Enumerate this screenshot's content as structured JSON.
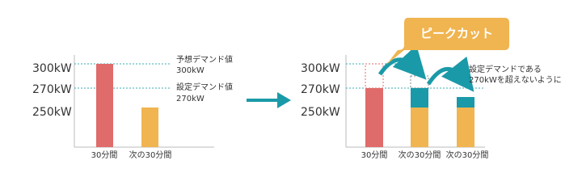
{
  "before": {
    "axis_labels": [
      "300kW",
      "270kW",
      "250kW"
    ],
    "categories": [
      "30分間",
      "次の30分間"
    ],
    "annotations": [
      {
        "title": "予想デマンド値",
        "value": "300kW"
      },
      {
        "title": "設定デマンド値",
        "value": " 270kW"
      }
    ]
  },
  "after": {
    "axis_labels": [
      "300kW",
      "270kW",
      "250kW"
    ],
    "categories": [
      "30分間",
      "次の30分間",
      "次の30分間"
    ],
    "callout": "ピークカット",
    "note": [
      "設定デマンドである",
      "270kWを超えないように"
    ]
  }
}
